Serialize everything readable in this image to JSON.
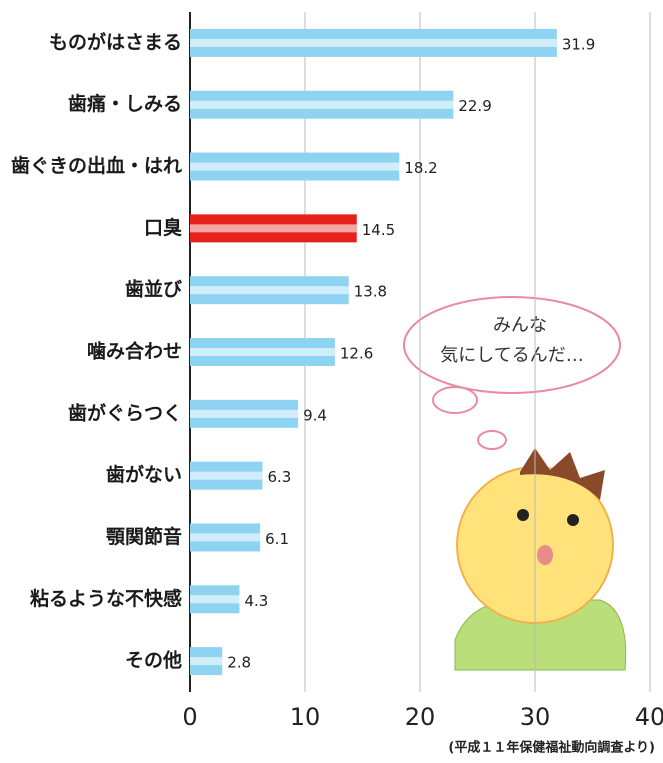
{
  "chart_data": {
    "type": "barh",
    "categories": [
      "ものがはさまる",
      "歯痛・しみる",
      "歯ぐきの出血・はれ",
      "口臭",
      "歯並び",
      "噛み合わせ",
      "歯がぐらつく",
      "歯がない",
      "顎関節音",
      "粘るような不快感",
      "その他"
    ],
    "values": [
      31.9,
      22.9,
      18.2,
      14.5,
      13.8,
      12.6,
      9.4,
      6.3,
      6.1,
      4.3,
      2.8
    ],
    "colors": [
      "#8fd3f2",
      "#8fd3f2",
      "#8fd3f2",
      "#e8201c",
      "#8fd3f2",
      "#8fd3f2",
      "#8fd3f2",
      "#8fd3f2",
      "#8fd3f2",
      "#8fd3f2",
      "#8fd3f2"
    ],
    "label_colors": [
      "#1a1a1a",
      "#1a1a1a",
      "#1a1a1a",
      "#e8201c",
      "#1a1a1a",
      "#1a1a1a",
      "#1a1a1a",
      "#1a1a1a",
      "#1a1a1a",
      "#1a1a1a",
      "#1a1a1a"
    ],
    "xlim": [
      0,
      40
    ],
    "xticks": [
      0,
      10,
      20,
      30,
      40
    ],
    "grid": true,
    "annotations": [
      "みんな",
      "気にしてるんだ…"
    ],
    "source": "(平成１１年保健福祉動向調査より)"
  }
}
